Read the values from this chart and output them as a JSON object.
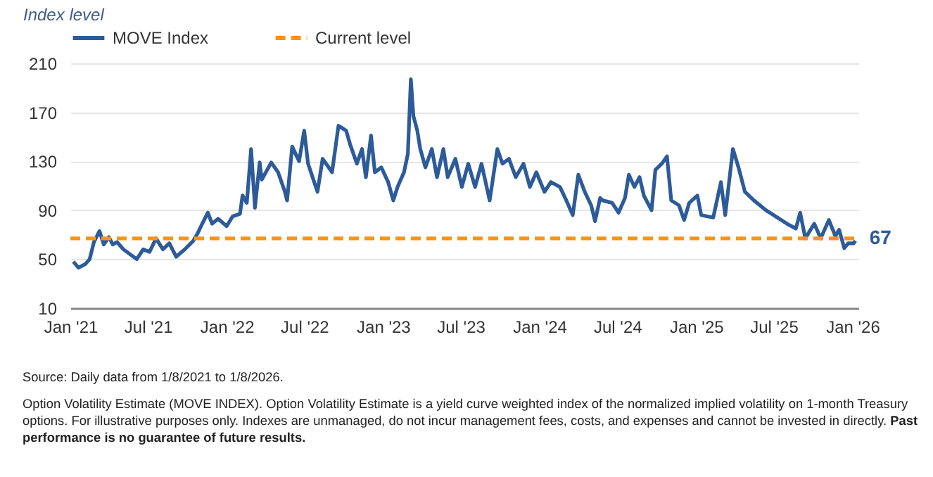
{
  "chart_data": {
    "type": "line",
    "ylabel": "Index level",
    "annotations": [
      {
        "text": "67",
        "x": "2026-01-08",
        "y": 67
      },
      "Source: Daily data from 1/8/2021 to 1/8/2026.",
      "Option Volatility Estimate (MOVE INDEX). Option Volatility Estimate is a yield curve weighted index of the normalized implied volatility on 1-month Treasury options. For illustrative purposes only. Indexes are unmanaged, do not incur management fees, costs, and expenses and cannot be invested in directly.",
      "Past performance is no guarantee of future results."
    ],
    "xlim": [
      "2021-01-01",
      "2026-01-15"
    ],
    "xticks": [
      {
        "value": "2021-01-01",
        "label": "Jan '21"
      },
      {
        "value": "2021-07-01",
        "label": "Jul '21"
      },
      {
        "value": "2022-01-01",
        "label": "Jan '22"
      },
      {
        "value": "2022-07-01",
        "label": "Jul '22"
      },
      {
        "value": "2023-01-01",
        "label": "Jan '23"
      },
      {
        "value": "2023-07-01",
        "label": "Jul '23"
      },
      {
        "value": "2024-01-01",
        "label": "Jan '24"
      },
      {
        "value": "2024-07-01",
        "label": "Jul '24"
      },
      {
        "value": "2025-01-01",
        "label": "Jan '25"
      },
      {
        "value": "2025-07-01",
        "label": "Jul '25"
      },
      {
        "value": "2026-01-01",
        "label": "Jan '26"
      }
    ],
    "ylim": [
      10,
      210
    ],
    "yticks": [
      10,
      50,
      90,
      130,
      170,
      210
    ],
    "grid": "y",
    "legend": "top",
    "marker": "none",
    "series": [
      {
        "name": "MOVE Index",
        "color": "#2d5b9a",
        "line_style": "solid",
        "x": [
          "2021-01-08",
          "2021-01-20",
          "2021-02-05",
          "2021-02-15",
          "2021-02-25",
          "2021-03-10",
          "2021-03-20",
          "2021-04-01",
          "2021-04-10",
          "2021-04-20",
          "2021-05-05",
          "2021-06-05",
          "2021-06-20",
          "2021-07-05",
          "2021-07-20",
          "2021-08-05",
          "2021-08-20",
          "2021-09-05",
          "2021-09-25",
          "2021-10-15",
          "2021-10-25",
          "2021-11-05",
          "2021-11-18",
          "2021-11-28",
          "2021-12-12",
          "2022-01-01",
          "2022-01-15",
          "2022-02-01",
          "2022-02-07",
          "2022-02-17",
          "2022-02-27",
          "2022-03-08",
          "2022-03-19",
          "2022-03-24",
          "2022-04-15",
          "2022-05-01",
          "2022-05-16",
          "2022-05-22",
          "2022-06-03",
          "2022-06-19",
          "2022-07-01",
          "2022-07-10",
          "2022-08-01",
          "2022-08-13",
          "2022-09-04",
          "2022-09-19",
          "2022-10-07",
          "2022-10-16",
          "2022-11-01",
          "2022-11-13",
          "2022-11-22",
          "2022-12-04",
          "2022-12-13",
          "2022-12-28",
          "2023-01-13",
          "2023-01-25",
          "2023-02-04",
          "2023-02-19",
          "2023-02-28",
          "2023-03-07",
          "2023-03-13",
          "2023-03-22",
          "2023-03-29",
          "2023-04-10",
          "2023-04-25",
          "2023-05-07",
          "2023-05-22",
          "2023-06-01",
          "2023-06-19",
          "2023-07-04",
          "2023-07-19",
          "2023-08-04",
          "2023-08-19",
          "2023-09-07",
          "2023-09-25",
          "2023-10-07",
          "2023-10-22",
          "2023-11-07",
          "2023-11-25",
          "2023-12-10",
          "2023-12-25",
          "2024-01-13",
          "2024-01-28",
          "2024-02-18",
          "2024-03-04",
          "2024-03-19",
          "2024-04-01",
          "2024-04-16",
          "2024-05-01",
          "2024-05-10",
          "2024-05-22",
          "2024-05-28",
          "2024-06-19",
          "2024-07-04",
          "2024-07-19",
          "2024-07-28",
          "2024-08-10",
          "2024-08-22",
          "2024-09-01",
          "2024-09-19",
          "2024-09-28",
          "2024-10-13",
          "2024-10-25",
          "2024-11-04",
          "2024-11-22",
          "2024-12-04",
          "2024-12-16",
          "2025-01-04",
          "2025-01-13",
          "2025-02-10",
          "2025-02-28",
          "2025-03-10",
          "2025-03-28",
          "2025-04-10",
          "2025-04-25",
          "2025-05-16",
          "2025-06-13",
          "2025-07-10",
          "2025-08-01",
          "2025-08-22",
          "2025-09-01",
          "2025-09-13",
          "2025-10-04",
          "2025-10-19",
          "2025-11-07",
          "2025-11-22",
          "2025-12-01",
          "2025-12-13",
          "2025-12-22",
          "2026-01-04",
          "2026-01-08"
        ],
        "values": [
          48,
          43,
          46,
          50,
          64,
          73,
          62,
          68,
          62,
          64,
          58,
          50,
          58,
          56,
          67,
          58,
          63,
          52,
          58,
          65,
          71,
          79,
          88,
          79,
          83,
          77,
          85,
          87,
          102,
          96,
          140,
          92,
          129,
          115,
          129,
          121,
          106,
          98,
          142,
          130,
          155,
          128,
          105,
          132,
          121,
          159,
          155,
          144,
          128,
          140,
          117,
          151,
          121,
          125,
          113,
          98,
          109,
          121,
          136,
          197,
          167,
          155,
          140,
          125,
          140,
          117,
          140,
          117,
          132,
          109,
          128,
          109,
          128,
          98,
          140,
          128,
          132,
          117,
          128,
          109,
          121,
          105,
          113,
          109,
          98,
          86,
          119,
          105,
          94,
          81,
          100,
          98,
          96,
          88,
          100,
          119,
          109,
          117,
          102,
          90,
          123,
          128,
          134,
          98,
          94,
          82,
          96,
          102,
          86,
          84,
          113,
          86,
          140,
          125,
          105,
          98,
          90,
          84,
          79,
          75,
          88,
          67,
          79,
          67,
          82,
          69,
          74,
          59,
          63,
          63,
          65
        ]
      },
      {
        "name": "Current level",
        "color": "#f7941d",
        "line_style": "dashed",
        "x": [
          "2021-01-01",
          "2026-01-15"
        ],
        "values": [
          67,
          67
        ]
      }
    ]
  }
}
